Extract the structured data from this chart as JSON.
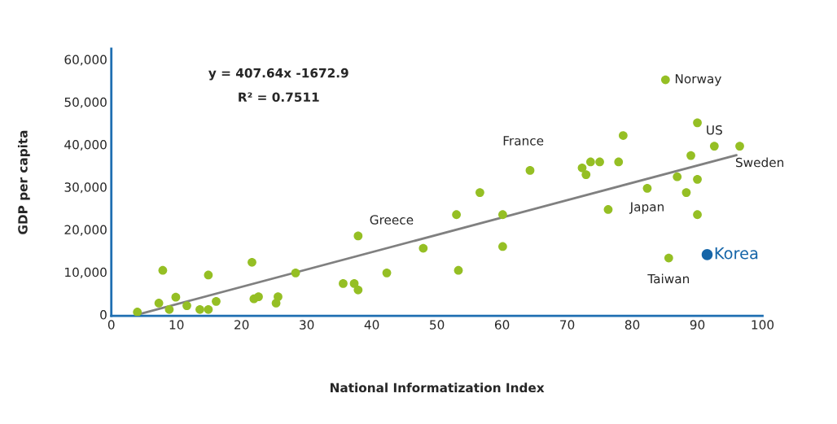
{
  "chart_data": {
    "type": "scatter",
    "xlabel": "National Informatization Index",
    "ylabel": "GDP per capita",
    "xlim": [
      0,
      100
    ],
    "ylim": [
      -300,
      62500
    ],
    "xticks": [
      0,
      10,
      20,
      30,
      40,
      50,
      60,
      70,
      80,
      90,
      100
    ],
    "yticks": [
      {
        "value": 0,
        "label": "0"
      },
      {
        "value": 10000,
        "label": "10,000"
      },
      {
        "value": 20000,
        "label": "20,000"
      },
      {
        "value": 30000,
        "label": "30,000"
      },
      {
        "value": 40000,
        "label": "40,000"
      },
      {
        "value": 50000,
        "label": "50,000"
      },
      {
        "value": 60000,
        "label": "60,000"
      }
    ],
    "grid": false,
    "legend": false,
    "series": [
      {
        "marker": "circle",
        "color": "#95bf24",
        "x": [
          4,
          7.3,
          7.9,
          8.9,
          9.9,
          11.6,
          13.6,
          14.9,
          14.9,
          16.1,
          21.6,
          21.9,
          22.6,
          25.3,
          25.6,
          28.3,
          35.6,
          37.3,
          37.9,
          37.9,
          42.3,
          47.9,
          53,
          53.3,
          56.6,
          60.1,
          60.1,
          64.3,
          72.3,
          72.9,
          73.6,
          75,
          76.3,
          77.9,
          78.6,
          82.3,
          85.1,
          85.6,
          86.9,
          88.3,
          89,
          90,
          90,
          90,
          92.6,
          96.5
        ],
        "values": [
          600,
          2700,
          10400,
          1200,
          4100,
          2100,
          1200,
          1200,
          9300,
          3100,
          12300,
          3700,
          4200,
          2700,
          4200,
          9800,
          7300,
          7300,
          5800,
          18500,
          9800,
          15600,
          23500,
          10400,
          28700,
          23500,
          16000,
          33900,
          34500,
          32900,
          35900,
          35900,
          24700,
          35900,
          42100,
          29700,
          55200,
          13300,
          32400,
          28700,
          37400,
          45100,
          31800,
          23500,
          39600,
          39600
        ]
      },
      {
        "marker": "circle",
        "name": "Korea",
        "color": "#1565a8",
        "x": [
          91.5
        ],
        "values": [
          14100
        ]
      },
      {
        "type": "line",
        "color": "#808080",
        "x": [
          4,
          96
        ],
        "values": [
          0,
          37500
        ]
      }
    ],
    "annotations": [
      "y = 407.64x -1672.9",
      "R² = 0.7511",
      {
        "text": "Norway",
        "x": 85.1,
        "y": 55200
      },
      {
        "text": "US",
        "x": 92.6,
        "y": 39600
      },
      {
        "text": "Sweden",
        "x": 96.5,
        "y": 39600
      },
      {
        "text": "Japan",
        "x": 82.3,
        "y": 29700
      },
      {
        "text": "France",
        "x": 64.3,
        "y": 33900
      },
      {
        "text": "Greece",
        "x": 37.9,
        "y": 18500
      },
      {
        "text": "Taiwan",
        "x": 85.6,
        "y": 13300
      }
    ]
  }
}
